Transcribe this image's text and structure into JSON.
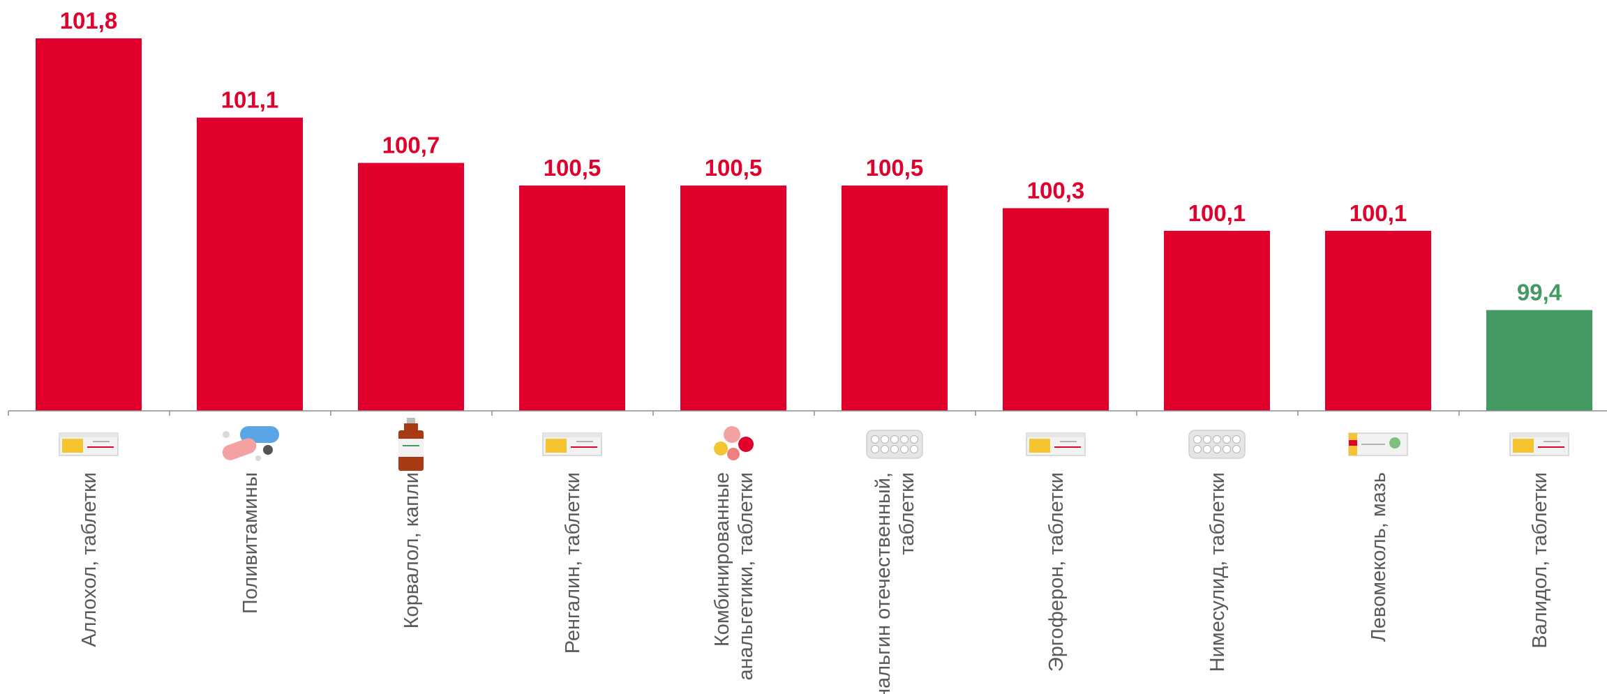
{
  "chart_data": {
    "type": "bar",
    "categories": [
      [
        "Аллохол, таблетки"
      ],
      [
        "Поливитамины"
      ],
      [
        "Корвалол, капли"
      ],
      [
        "Ренгалин, таблетки"
      ],
      [
        "Комбинированные",
        "анальгетики, таблетки"
      ],
      [
        "Анальгин отечественный,",
        "таблетки"
      ],
      [
        "Эргоферон, таблетки"
      ],
      [
        "Нимесулид, таблетки"
      ],
      [
        "Левомеколь, мазь"
      ],
      [
        "Валидол, таблетки"
      ]
    ],
    "values": [
      101.8,
      101.1,
      100.7,
      100.5,
      100.5,
      100.5,
      100.3,
      100.1,
      100.1,
      99.4
    ],
    "value_labels": [
      "101,8",
      "101,1",
      "100,7",
      "100,5",
      "100,5",
      "100,5",
      "100,3",
      "100,1",
      "100,1",
      "99,4"
    ],
    "icons": [
      "tablet-box-icon",
      "vitamin-capsules-icon",
      "drops-bottle-icon",
      "tablet-box-icon",
      "colored-pills-icon",
      "blister-pack-icon",
      "tablet-box-icon",
      "blister-pack-icon",
      "ointment-box-icon",
      "tablet-box-icon"
    ],
    "threshold": 100,
    "colors": {
      "above": "#e0002b",
      "below": "#439a62"
    },
    "title": "",
    "xlabel": "",
    "ylabel": "",
    "grid": false,
    "legend": "none"
  }
}
